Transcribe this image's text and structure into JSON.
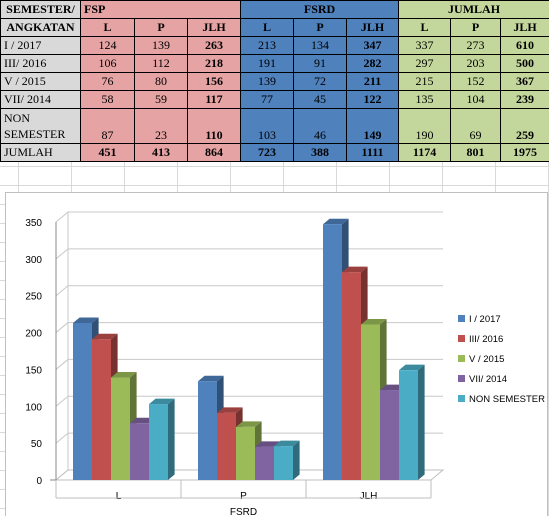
{
  "table": {
    "header": {
      "row_label_line1": "SEMESTER/",
      "row_label_line2": "ANGKATAN",
      "groups": [
        "FSP",
        "FSRD",
        "JUMLAH"
      ],
      "subcols": [
        "L",
        "P",
        "JLH"
      ]
    },
    "rows": [
      {
        "label": "I / 2017",
        "fsp": [
          "124",
          "139",
          "263"
        ],
        "fsrd": [
          "213",
          "134",
          "347"
        ],
        "jumlah": [
          "337",
          "273",
          "610"
        ]
      },
      {
        "label": "III/ 2016",
        "fsp": [
          "106",
          "112",
          "218"
        ],
        "fsrd": [
          "191",
          "91",
          "282"
        ],
        "jumlah": [
          "297",
          "203",
          "500"
        ]
      },
      {
        "label": "V / 2015",
        "fsp": [
          "76",
          "80",
          "156"
        ],
        "fsrd": [
          "139",
          "72",
          "211"
        ],
        "jumlah": [
          "215",
          "152",
          "367"
        ]
      },
      {
        "label": "VII/ 2014",
        "fsp": [
          "58",
          "59",
          "117"
        ],
        "fsrd": [
          "77",
          "45",
          "122"
        ],
        "jumlah": [
          "135",
          "104",
          "239"
        ]
      },
      {
        "label_line1": "NON",
        "label_line2": "SEMESTER",
        "fsp": [
          "87",
          "23",
          "110"
        ],
        "fsrd": [
          "103",
          "46",
          "149"
        ],
        "jumlah": [
          "190",
          "69",
          "259"
        ]
      }
    ],
    "total": {
      "label": "JUMLAH",
      "fsp": [
        "451",
        "413",
        "864"
      ],
      "fsrd": [
        "723",
        "388",
        "1111"
      ],
      "jumlah": [
        "1174",
        "801",
        "1975"
      ]
    }
  },
  "colors": {
    "fsp": "#e6a3a3",
    "fsrd": "#4f81bd",
    "jumlah": "#c3d69b",
    "label_bg": "#d9d9d9"
  },
  "chart_data": {
    "type": "bar",
    "style": "3d-clustered-column",
    "title": "FSRD",
    "categories": [
      "L",
      "P",
      "JLH"
    ],
    "series": [
      {
        "name": "I / 2017",
        "color": "#4f81bd",
        "values": [
          213,
          134,
          347
        ]
      },
      {
        "name": "III/ 2016",
        "color": "#c0504d",
        "values": [
          191,
          91,
          282
        ]
      },
      {
        "name": "V / 2015",
        "color": "#9bbb59",
        "values": [
          139,
          72,
          211
        ]
      },
      {
        "name": "VII/ 2014",
        "color": "#8064a2",
        "values": [
          77,
          45,
          122
        ]
      },
      {
        "name": "NON SEMESTER",
        "color": "#4bacc6",
        "values": [
          103,
          46,
          149
        ]
      }
    ],
    "ylim": [
      0,
      350
    ],
    "yticks": [
      "0",
      "50",
      "100",
      "150",
      "200",
      "250",
      "300",
      "350"
    ],
    "grid": true,
    "legend": "right"
  }
}
